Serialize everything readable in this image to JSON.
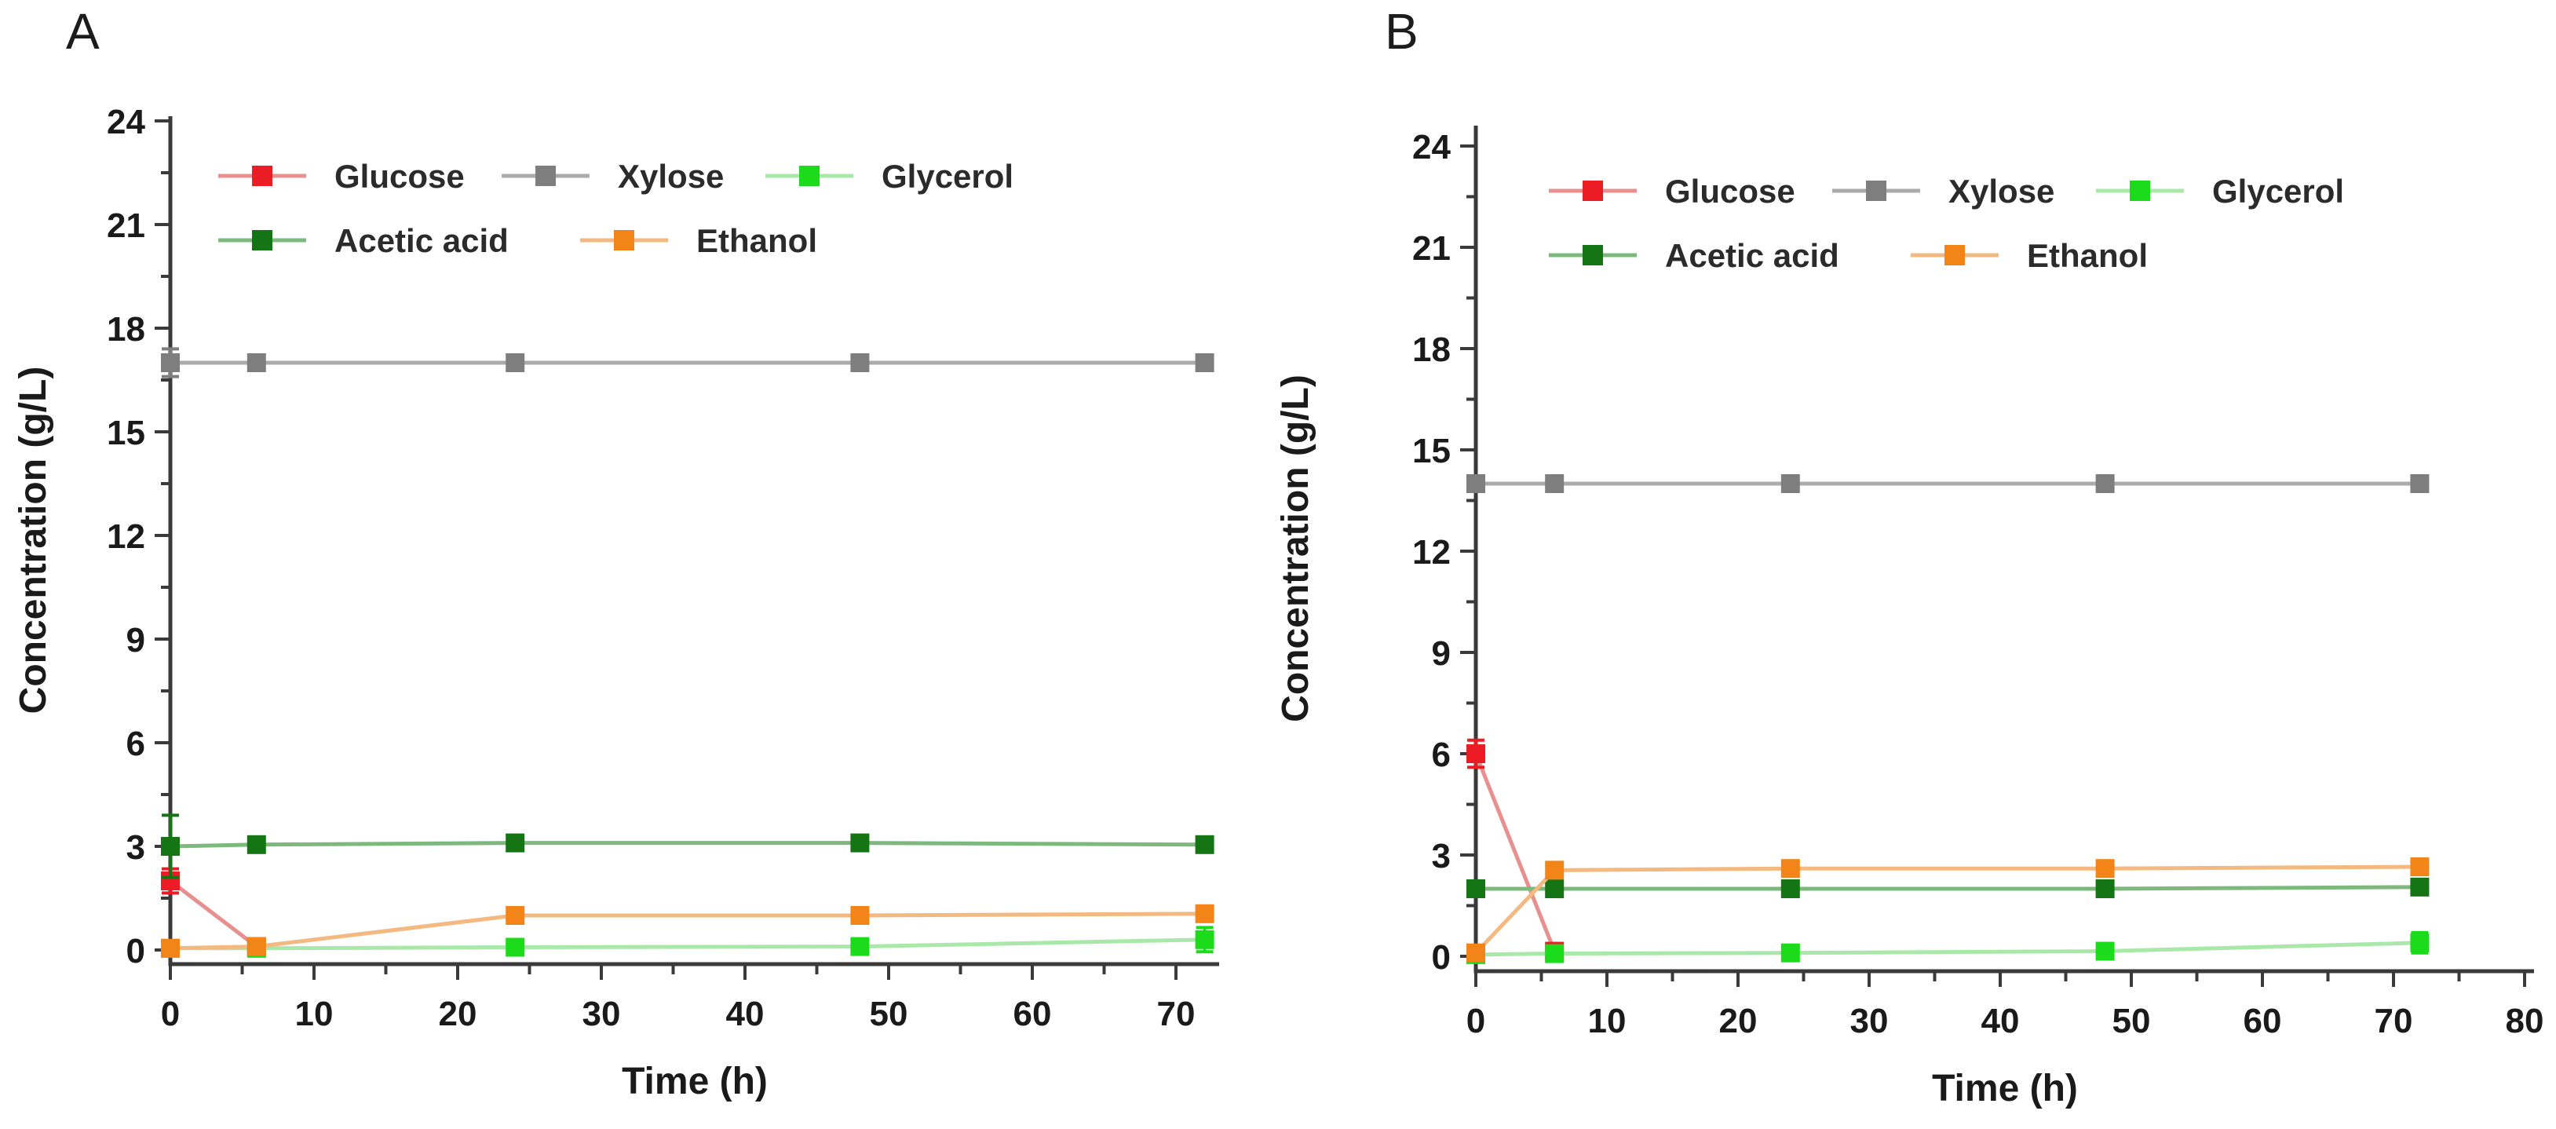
{
  "figure": {
    "background": "#ffffff",
    "axis_color": "#3a3a3a",
    "text_color": "#1a1a1a",
    "legend_text_color": "#2b2b2b",
    "panel_count": 2
  },
  "chart_data": [
    {
      "type": "line",
      "panel_label": "A",
      "title": "",
      "xlabel": "Time (h)",
      "ylabel": "Concentration (g/L)",
      "xlim": [
        0,
        73
      ],
      "ylim": [
        0,
        24
      ],
      "x_ticks_major": [
        0,
        10,
        20,
        30,
        40,
        50,
        60,
        70
      ],
      "x_tick_minor_step": 5,
      "x_tick_minor_max": 70,
      "y_ticks_major": [
        0,
        3,
        6,
        9,
        12,
        15,
        18,
        21,
        24
      ],
      "y_tick_minor_step": 1.5,
      "grid": false,
      "legend_position": "top-left-inside",
      "legend_rows": [
        [
          "Glucose",
          "Xylose",
          "Glycerol"
        ],
        [
          "Acetic acid",
          "Ethanol"
        ]
      ],
      "x_points": [
        0,
        6,
        24,
        48,
        72
      ],
      "series": [
        {
          "name": "Glucose",
          "marker_color": "#ec1c24",
          "line_color": "#e89090",
          "x": [
            0,
            6
          ],
          "y": [
            2.0,
            0.1
          ],
          "yerr": [
            0.35,
            0
          ]
        },
        {
          "name": "Xylose",
          "marker_color": "#7e7e7e",
          "line_color": "#ababab",
          "x": [
            0,
            6,
            24,
            48,
            72
          ],
          "y": [
            17,
            17,
            17,
            17,
            17
          ],
          "yerr": [
            0.4,
            0,
            0,
            0,
            0
          ]
        },
        {
          "name": "Glycerol",
          "marker_color": "#1bdb1b",
          "line_color": "#a9e8a9",
          "x": [
            0,
            6,
            24,
            48,
            72
          ],
          "y": [
            0.05,
            0.05,
            0.08,
            0.1,
            0.3
          ],
          "yerr": [
            0,
            0,
            0,
            0,
            0.35
          ]
        },
        {
          "name": "Acetic acid",
          "marker_color": "#157515",
          "line_color": "#7db87d",
          "x": [
            0,
            6,
            24,
            48,
            72
          ],
          "y": [
            3.0,
            3.05,
            3.1,
            3.1,
            3.05
          ],
          "yerr": [
            0.9,
            0,
            0,
            0,
            0
          ]
        },
        {
          "name": "Ethanol",
          "marker_color": "#f28418",
          "line_color": "#f3b980",
          "x": [
            0,
            6,
            24,
            48,
            72
          ],
          "y": [
            0.05,
            0.1,
            1.0,
            1.0,
            1.05
          ],
          "yerr": [
            0,
            0,
            0,
            0,
            0
          ]
        }
      ]
    },
    {
      "type": "line",
      "panel_label": "B",
      "title": "",
      "xlabel": "Time (h)",
      "ylabel": "Concentration (g/L)",
      "xlim": [
        0,
        81
      ],
      "ylim": [
        0,
        24
      ],
      "x_ticks_major": [
        0,
        10,
        20,
        30,
        40,
        50,
        60,
        70,
        80
      ],
      "x_tick_minor_step": 5,
      "x_tick_minor_max": 80,
      "y_ticks_major": [
        0,
        3,
        6,
        9,
        12,
        15,
        18,
        21,
        24
      ],
      "y_tick_minor_step": 1.5,
      "grid": false,
      "legend_position": "top-left-inside",
      "legend_rows": [
        [
          "Glucose",
          "Xylose",
          "Glycerol"
        ],
        [
          "Acetic acid",
          "Ethanol"
        ]
      ],
      "x_points": [
        0,
        6,
        24,
        48,
        72
      ],
      "series": [
        {
          "name": "Glucose",
          "marker_color": "#ec1c24",
          "line_color": "#e89090",
          "x": [
            0,
            6
          ],
          "y": [
            6.0,
            0.15
          ],
          "yerr": [
            0.4,
            0
          ]
        },
        {
          "name": "Xylose",
          "marker_color": "#7e7e7e",
          "line_color": "#ababab",
          "x": [
            0,
            6,
            24,
            48,
            72
          ],
          "y": [
            14,
            14,
            14,
            14,
            14
          ],
          "yerr": [
            0,
            0,
            0,
            0,
            0
          ]
        },
        {
          "name": "Glycerol",
          "marker_color": "#1bdb1b",
          "line_color": "#a9e8a9",
          "x": [
            0,
            6,
            24,
            48,
            72
          ],
          "y": [
            0.05,
            0.08,
            0.1,
            0.15,
            0.4
          ],
          "yerr": [
            0,
            0,
            0,
            0,
            0.3
          ]
        },
        {
          "name": "Acetic acid",
          "marker_color": "#157515",
          "line_color": "#7db87d",
          "x": [
            0,
            6,
            24,
            48,
            72
          ],
          "y": [
            2.0,
            2.0,
            2.0,
            2.0,
            2.05
          ],
          "yerr": [
            0,
            0,
            0,
            0,
            0
          ]
        },
        {
          "name": "Ethanol",
          "marker_color": "#f28418",
          "line_color": "#f3b980",
          "x": [
            0,
            6,
            24,
            48,
            72
          ],
          "y": [
            0.1,
            2.55,
            2.6,
            2.6,
            2.65
          ],
          "yerr": [
            0,
            0.1,
            0,
            0,
            0
          ]
        }
      ]
    }
  ]
}
